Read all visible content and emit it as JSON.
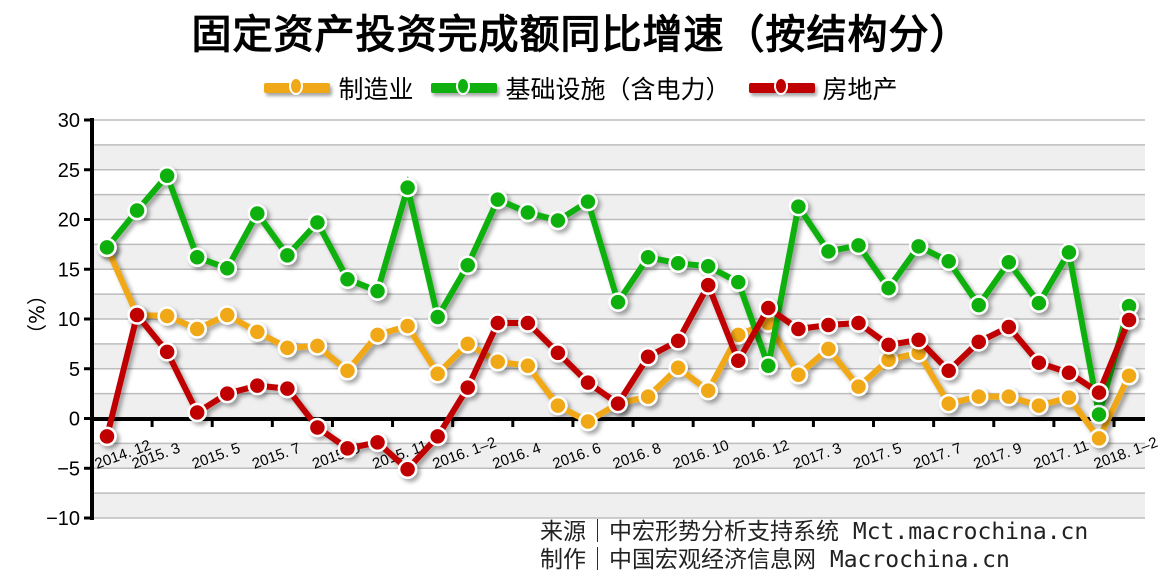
{
  "chart_data": {
    "type": "line",
    "title": "固定资产投资完成额同比增速（按结构分）",
    "xlabel": "",
    "ylabel": "（%）",
    "ylim": [
      -10,
      30
    ],
    "yticks": [
      -10,
      -5,
      0,
      5,
      10,
      15,
      20,
      25,
      30
    ],
    "grid": true,
    "legend_position": "top",
    "x": [
      "2014.12",
      "2015.1-2",
      "2015.3",
      "2015.4",
      "2015.5",
      "2015.6",
      "2015.7",
      "2015.8",
      "2015.9",
      "2015.10",
      "2015.11",
      "2015.12",
      "2016.1-2",
      "2016.3",
      "2016.4",
      "2016.5",
      "2016.6",
      "2016.7",
      "2016.8",
      "2016.9",
      "2016.10",
      "2016.11",
      "2016.12",
      "2017.1-2",
      "2017.3",
      "2017.4",
      "2017.5",
      "2017.6",
      "2017.7",
      "2017.8",
      "2017.9",
      "2017.10",
      "2017.11",
      "2017.12",
      "2018.1-2"
    ],
    "x_tick_labels": [
      "2014.12",
      "2015.3",
      "2015.5",
      "2015.7",
      "2015.9",
      "2015.11",
      "2016.1-2",
      "2016.4",
      "2016.6",
      "2016.8",
      "2016.10",
      "2016.12",
      "2017.3",
      "2017.5",
      "2017.7",
      "2017.9",
      "2017.11",
      "2018.1-2"
    ],
    "series": [
      {
        "name": "制造业",
        "color": "#f0a818",
        "values": [
          17.2,
          10.4,
          10.3,
          9.0,
          10.4,
          8.7,
          7.1,
          7.3,
          4.8,
          8.4,
          9.3,
          4.5,
          7.5,
          5.7,
          5.3,
          1.3,
          -0.3,
          1.5,
          2.2,
          5.1,
          2.8,
          8.4,
          9.6,
          4.4,
          7.0,
          3.2,
          5.9,
          6.6,
          1.5,
          2.2,
          2.2,
          1.3,
          2.1,
          -2.0,
          4.3
        ]
      },
      {
        "name": "基础设施（含电力）",
        "color": "#10b010",
        "values": [
          17.2,
          20.9,
          24.4,
          16.2,
          15.1,
          20.6,
          16.4,
          19.7,
          14.0,
          12.8,
          23.2,
          10.2,
          15.4,
          22.0,
          20.7,
          19.9,
          21.8,
          11.7,
          16.2,
          15.6,
          15.3,
          13.7,
          5.3,
          21.3,
          16.8,
          17.4,
          13.1,
          17.3,
          15.8,
          11.4,
          15.7,
          11.6,
          16.7,
          0.4,
          11.3
        ]
      },
      {
        "name": "房地产",
        "color": "#c00000",
        "values": [
          -1.8,
          10.4,
          6.7,
          0.6,
          2.5,
          3.3,
          3.0,
          -0.9,
          -3.0,
          -2.4,
          -5.1,
          -1.8,
          3.1,
          9.6,
          9.6,
          6.6,
          3.6,
          1.5,
          6.2,
          7.8,
          13.4,
          5.8,
          11.1,
          9.0,
          9.4,
          9.6,
          7.4,
          7.9,
          4.8,
          7.7,
          9.2,
          5.6,
          4.6,
          2.6,
          9.9
        ]
      }
    ]
  },
  "header": {
    "title": "固定资产投资完成额同比增速（按结构分）"
  },
  "legend": {
    "items": [
      {
        "label": "制造业",
        "color": "#f0a818"
      },
      {
        "label": "基础设施（含电力）",
        "color": "#10b010"
      },
      {
        "label": "房地产",
        "color": "#c00000"
      }
    ]
  },
  "axis": {
    "ylabel": "（%）"
  },
  "footer": {
    "source": "来源｜中宏形势分析支持系统 Mct.macrochina.cn",
    "made_by": "制作｜中国宏观经济信息网 Macrochina.cn"
  }
}
